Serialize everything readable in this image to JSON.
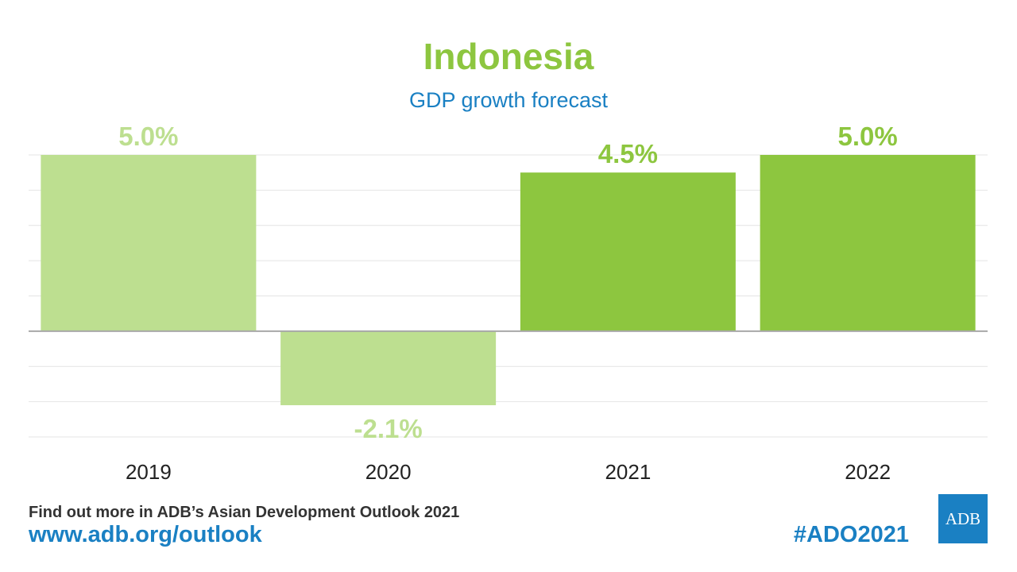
{
  "header": {
    "title": "Indonesia",
    "subtitle": "GDP growth forecast"
  },
  "chart_data": {
    "type": "bar",
    "title": "Indonesia",
    "subtitle": "GDP growth forecast",
    "categories": [
      "2019",
      "2020",
      "2021",
      "2022"
    ],
    "values": [
      5.0,
      -2.1,
      4.5,
      5.0
    ],
    "value_labels": [
      "5.0%",
      "-2.1%",
      "4.5%",
      "5.0%"
    ],
    "bar_colors": [
      "#bddf90",
      "#bddf90",
      "#8dc63f",
      "#8dc63f"
    ],
    "label_colors": [
      "#bddf90",
      "#bddf90",
      "#8dc63f",
      "#8dc63f"
    ],
    "ylim": [
      -3,
      5
    ],
    "grid": true,
    "grid_step": 1,
    "xlabel": "",
    "ylabel": ""
  },
  "footer": {
    "text": "Find out more in ADB’s Asian Development Outlook 2021",
    "link": "www.adb.org/outlook",
    "hashtag": "#ADO2021",
    "logo": "ADB"
  }
}
